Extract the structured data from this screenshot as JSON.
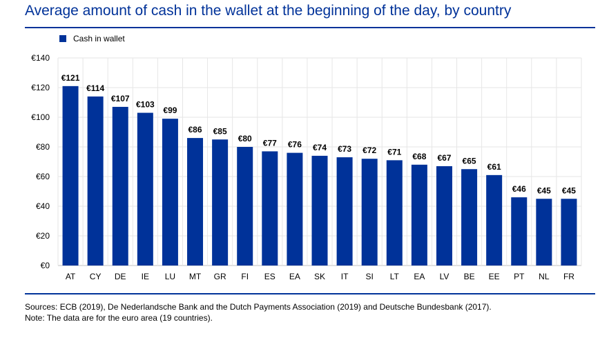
{
  "title": "Average amount of cash in the wallet at the beginning of the day, by country",
  "legend": {
    "label": "Cash in wallet",
    "color": "#003299"
  },
  "footer": {
    "sources": "Sources: ECB (2019), De Nederlandsche Bank and the Dutch Payments Association (2019) and Deutsche Bundesbank (2017).",
    "note": "Note: The data are for the euro area (19 countries)."
  },
  "chart_data": {
    "type": "bar",
    "categories": [
      "AT",
      "CY",
      "DE",
      "IE",
      "LU",
      "MT",
      "GR",
      "FI",
      "ES",
      "EA",
      "SK",
      "IT",
      "SI",
      "LT",
      "EA",
      "LV",
      "BE",
      "EE",
      "PT",
      "NL",
      "FR"
    ],
    "series": [
      {
        "name": "Cash in wallet",
        "values": [
          121,
          114,
          107,
          103,
          99,
          86,
          85,
          80,
          77,
          76,
          74,
          73,
          72,
          71,
          68,
          67,
          65,
          61,
          46,
          45,
          45
        ],
        "color": "#003299"
      }
    ],
    "data_labels": [
      "€121",
      "€114",
      "€107",
      "€103",
      "€99",
      "€86",
      "€85",
      "€80",
      "€77",
      "€76",
      "€74",
      "€73",
      "€72",
      "€71",
      "€68",
      "€67",
      "€65",
      "€61",
      "€46",
      "€45",
      "€45"
    ],
    "yticks": [
      "€0",
      "€20",
      "€40",
      "€60",
      "€80",
      "€100",
      "€120",
      "€140"
    ],
    "ytick_values": [
      0,
      20,
      40,
      60,
      80,
      100,
      120,
      140
    ],
    "ylim": [
      0,
      140
    ],
    "grid": true,
    "legend_position": "top-left"
  }
}
